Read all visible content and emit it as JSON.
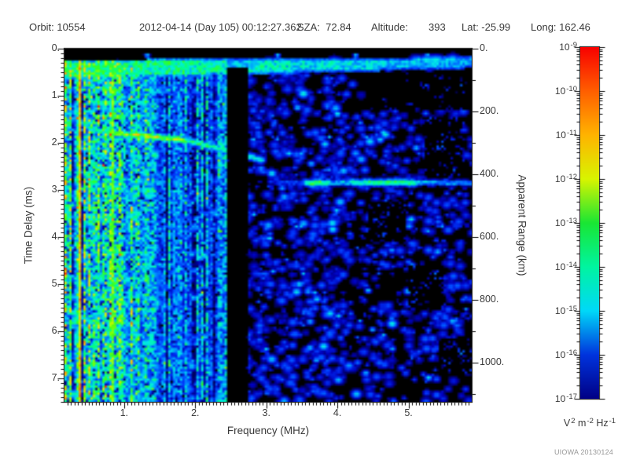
{
  "header": {
    "items": [
      {
        "text": "Orbit: 10554"
      },
      {
        "text": "2012-04-14 (Day 105) 00:12:27.362"
      },
      {
        "text": "SZA:  72.84"
      },
      {
        "text": "Altitude:"
      },
      {
        "text": "393"
      },
      {
        "text": "Lat: -25.99"
      },
      {
        "text": "Long: 162.46"
      }
    ]
  },
  "footer": {
    "credit": "UIOWA 20130124"
  },
  "chart_data": {
    "type": "heatmap",
    "title": "",
    "xlabel": "Frequency (MHz)",
    "ylabel": "Time Delay (ms)",
    "y2label": "Apparent Range (km)",
    "xlim": [
      0.16,
      5.89
    ],
    "ylim": [
      0,
      7.5
    ],
    "y2lim": [
      0,
      1125
    ],
    "x_minor_step": 0.05,
    "y_minor_step": 0.1,
    "y2_minor_step": 100,
    "xticks": [
      1,
      2,
      3,
      4,
      5
    ],
    "xtick_labels": [
      "1.",
      "2.",
      "3.",
      "4.",
      "5."
    ],
    "yticks": [
      0,
      1,
      2,
      3,
      4,
      5,
      6,
      7
    ],
    "ytick_labels": [
      "0.",
      "1.",
      "2.",
      "3.",
      "4.",
      "5.",
      "6.",
      "7."
    ],
    "y2ticks": [
      0,
      200,
      400,
      600,
      800,
      1000
    ],
    "y2tick_labels": [
      "0.",
      "200.",
      "400.",
      "600.",
      "800.",
      "1000."
    ],
    "grid": false,
    "background": "#000000",
    "colorbar": {
      "scale": "log",
      "max": "1e-9",
      "min": "1e-17",
      "tick_labels": [
        {
          "base": "10",
          "exp": "-9"
        },
        {
          "base": "10",
          "exp": "-10"
        },
        {
          "base": "10",
          "exp": "-11"
        },
        {
          "base": "10",
          "exp": "-12"
        },
        {
          "base": "10",
          "exp": "-13"
        },
        {
          "base": "10",
          "exp": "-14"
        },
        {
          "base": "10",
          "exp": "-15"
        },
        {
          "base": "10",
          "exp": "-16"
        },
        {
          "base": "10",
          "exp": "-17"
        }
      ],
      "unit_segments": [
        {
          "t": "V",
          "sup": "2"
        },
        {
          "t": " m",
          "sup": "-2"
        },
        {
          "t": " Hz",
          "sup": "-1"
        }
      ],
      "gradient_stops": [
        [
          "#f80000",
          0
        ],
        [
          "#ff5e00",
          12.5
        ],
        [
          "#ffb300",
          25
        ],
        [
          "#d8f400",
          37.5
        ],
        [
          "#19e633",
          50
        ],
        [
          "#00f4a0",
          62.5
        ],
        [
          "#00d8f8",
          75
        ],
        [
          "#0033dd",
          87.5
        ],
        [
          "#000085",
          100
        ]
      ]
    },
    "features": {
      "top_black_band_ms": [
        0,
        0.23
      ],
      "transmit_pulse_band_ms": [
        0.23,
        0.6
      ],
      "plasma_oscillation_lines_mhz": [
        0.35,
        0.81
      ],
      "dense_noise_max_mhz": 1.45,
      "medium_noise_max_mhz": 2.48,
      "rfi_gap_mhz": [
        2.48,
        2.7
      ],
      "pre_pulse_dots": {
        "delay_ms": 0.12,
        "freqs_mhz": [
          1.31,
          3.15,
          4.25,
          5.26
        ]
      },
      "ionospheric_echo_trace": {
        "points_mhz_ms": [
          [
            0.65,
            1.72
          ],
          [
            0.91,
            1.77
          ],
          [
            1.19,
            1.82
          ],
          [
            1.46,
            1.85
          ],
          [
            1.74,
            1.9
          ],
          [
            1.96,
            1.97
          ],
          [
            2.15,
            2.03
          ],
          [
            2.33,
            2.1
          ],
          [
            2.48,
            2.15
          ],
          [
            2.66,
            2.23
          ],
          [
            2.79,
            2.28
          ],
          [
            2.92,
            2.35
          ]
        ]
      },
      "ground_echo": {
        "delay_ms": 2.82,
        "apparent_range_km": 423,
        "segments_mhz_intensity": [
          [
            3.14,
            3.54,
            0.3
          ],
          [
            3.56,
            3.87,
            0.66
          ],
          [
            3.89,
            4.18,
            0.5
          ],
          [
            4.2,
            4.49,
            0.62
          ],
          [
            4.51,
            4.78,
            0.64
          ],
          [
            4.8,
            5.09,
            0.62
          ],
          [
            5.11,
            5.4,
            0.5
          ],
          [
            5.42,
            5.88,
            0.42
          ]
        ]
      }
    }
  }
}
